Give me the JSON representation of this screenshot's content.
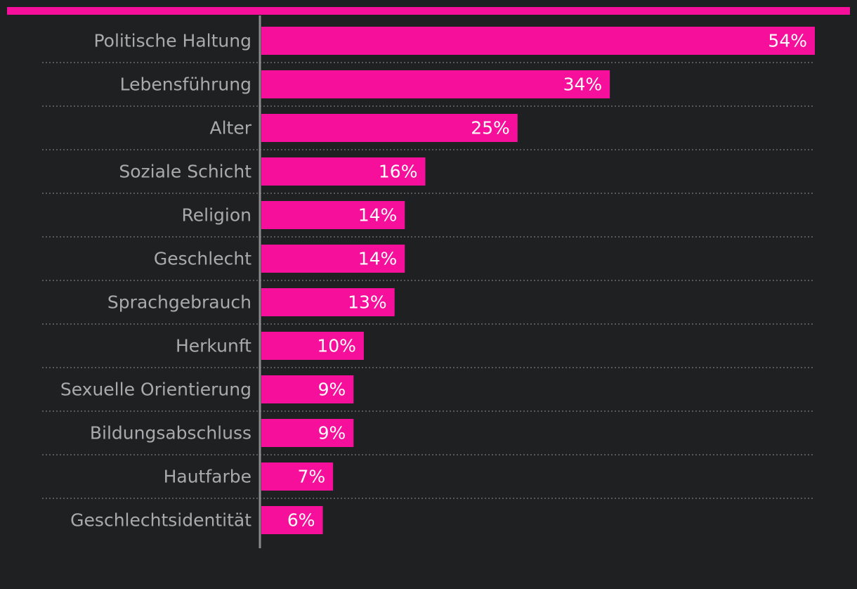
{
  "colors": {
    "background": "#1f2022",
    "accent": "#f50f9a",
    "category_text": "#a9aaac",
    "value_text": "#ffffff",
    "axis": "#8a8b8d",
    "grid": "#6a6b6d"
  },
  "chart_data": {
    "type": "bar",
    "orientation": "horizontal",
    "categories": [
      "Politische Haltung",
      "Lebensführung",
      "Alter",
      "Soziale Schicht",
      "Religion",
      "Geschlecht",
      "Sprachgebrauch",
      "Herkunft",
      "Sexuelle Orientierung",
      "Bildungsabschluss",
      "Hautfarbe",
      "Geschlechtsidentität"
    ],
    "values": [
      54,
      34,
      25,
      16,
      14,
      14,
      13,
      10,
      9,
      9,
      7,
      6
    ],
    "value_labels": [
      "54%",
      "34%",
      "25%",
      "16%",
      "14%",
      "14%",
      "13%",
      "10%",
      "9%",
      "9%",
      "7%",
      "6%"
    ],
    "unit": "%",
    "xlim": [
      0,
      54
    ],
    "grid": false,
    "row_separators": "dotted",
    "title": "",
    "xlabel": "",
    "ylabel": ""
  }
}
